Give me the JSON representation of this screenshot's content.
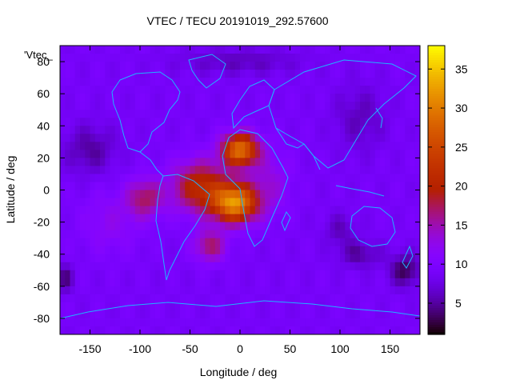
{
  "chart_data": {
    "type": "heatmap",
    "title": "VTEC / TECU 20191019_292.57600",
    "xlabel": "Longitude / deg",
    "ylabel": "Latitude / deg",
    "legend_key": "'Vtec_",
    "xlim": [
      -180,
      180
    ],
    "ylim": [
      -90,
      90
    ],
    "x_ticks": [
      -150,
      -100,
      -50,
      0,
      50,
      100,
      150
    ],
    "y_ticks": [
      -80,
      -60,
      -40,
      -20,
      0,
      20,
      40,
      60,
      80
    ],
    "colorbar": {
      "range": [
        1,
        38
      ],
      "ticks": [
        5,
        10,
        15,
        20,
        25,
        30,
        35
      ],
      "palette": "gnuplot-pm3d"
    },
    "grid": false,
    "coastline_color": "#1fb4ff",
    "field": {
      "background": 9,
      "components": [
        {
          "lon": 0,
          "lat": 25,
          "slon": 18,
          "slat": 10,
          "amp": 20
        },
        {
          "lon": -5,
          "lat": -8,
          "slon": 22,
          "slat": 12,
          "amp": 22
        },
        {
          "lon": -40,
          "lat": 2,
          "slon": 28,
          "slat": 16,
          "amp": 12
        },
        {
          "lon": -95,
          "lat": -5,
          "slon": 18,
          "slat": 12,
          "amp": 8
        },
        {
          "lon": -30,
          "lat": -35,
          "slon": 16,
          "slat": 10,
          "amp": 8
        },
        {
          "lon": 30,
          "lat": 5,
          "slon": 20,
          "slat": 20,
          "amp": 4
        },
        {
          "lon": -130,
          "lat": -20,
          "slon": 30,
          "slat": 20,
          "amp": 3
        }
      ],
      "dark_spots": [
        {
          "lon": 165,
          "lat": -50,
          "slon": 15,
          "slat": 10,
          "amp": 6
        },
        {
          "lon": 120,
          "lat": -40,
          "slon": 20,
          "slat": 8,
          "amp": 4
        },
        {
          "lon": 100,
          "lat": -25,
          "slon": 15,
          "slat": 10,
          "amp": 3
        },
        {
          "lon": -175,
          "lat": -55,
          "slon": 8,
          "slat": 8,
          "amp": 5
        },
        {
          "lon": -150,
          "lat": 25,
          "slon": 25,
          "slat": 15,
          "amp": 4
        },
        {
          "lon": 120,
          "lat": 45,
          "slon": 25,
          "slat": 20,
          "amp": 3
        },
        {
          "lon": 0,
          "lat": 80,
          "slon": 60,
          "slat": 8,
          "amp": 3
        }
      ]
    }
  }
}
